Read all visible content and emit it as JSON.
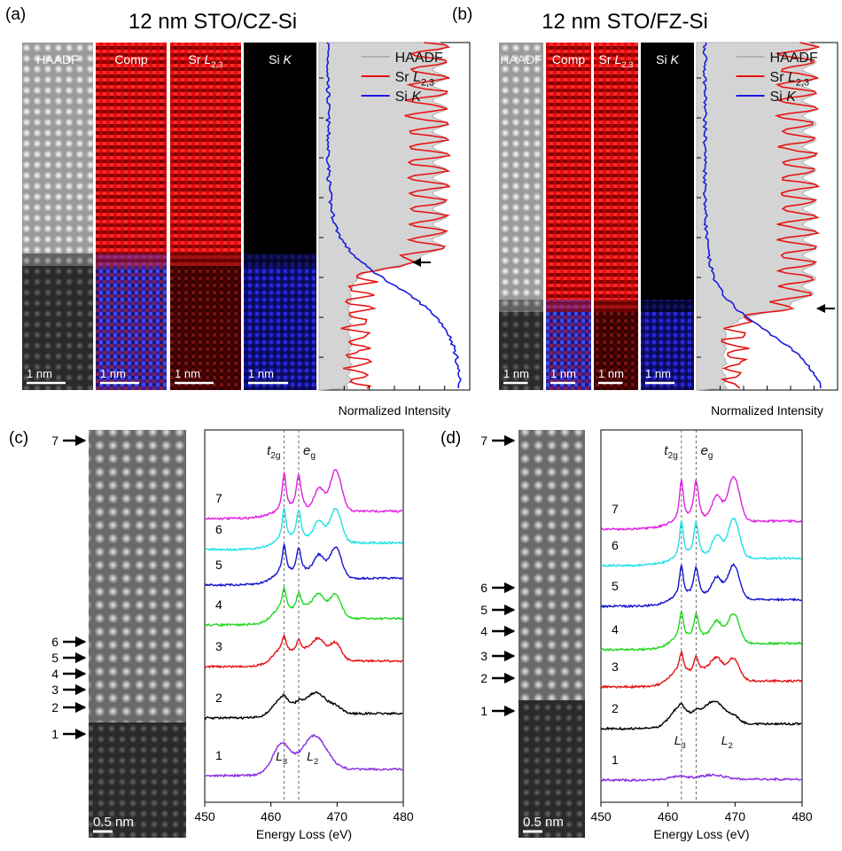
{
  "panels": {
    "a": {
      "label": "(a)",
      "title": "12 nm STO/CZ-Si",
      "strips": [
        {
          "text": "HAADF"
        },
        {
          "text": "Comp"
        },
        {
          "text": "Sr",
          "italic": "L",
          "sub": "2,3"
        },
        {
          "text": "Si",
          "italic": "K"
        }
      ],
      "scale_bars": [
        "1 nm",
        "1 nm",
        "1 nm",
        "1 nm"
      ],
      "legend": [
        {
          "text": "HAADF",
          "color": "#b0b0b0"
        },
        {
          "text": "Sr",
          "italic": "L",
          "sub": "2,3",
          "color": "#e81010"
        },
        {
          "text": "Si",
          "italic": "K",
          "color": "#1a1ae0"
        }
      ],
      "xlabel": "Normalized Intensity"
    },
    "b": {
      "label": "(b)",
      "title": "12 nm STO/FZ-Si",
      "strips": [
        {
          "text": "HAADF"
        },
        {
          "text": "Comp"
        },
        {
          "text": "Sr",
          "italic": "L",
          "sub": "2,3"
        },
        {
          "text": "Si",
          "italic": "K"
        }
      ],
      "scale_bars": [
        "1 nm",
        "1 nm",
        "1 nm",
        "1 nm"
      ],
      "legend": [
        {
          "text": "HAADF",
          "color": "#b0b0b0"
        },
        {
          "text": "Sr",
          "italic": "L",
          "sub": "2,3",
          "color": "#e81010"
        },
        {
          "text": "Si",
          "italic": "K",
          "color": "#1a1ae0"
        }
      ],
      "xlabel": "Normalized Intensity"
    },
    "c": {
      "label": "(c)",
      "arrows": [
        "7",
        "6",
        "5",
        "4",
        "3",
        "2",
        "1"
      ],
      "scale_bar": "0.5 nm",
      "spectra": [
        "7",
        "6",
        "5",
        "4",
        "3",
        "2",
        "1"
      ],
      "colors": [
        "#e020e0",
        "#20e0e8",
        "#1414d0",
        "#20d820",
        "#e81010",
        "#000000",
        "#8a2be2"
      ],
      "markers": [
        {
          "value": 462,
          "italic": "t",
          "sub": "2g"
        },
        {
          "value": 464.2,
          "italic": "e",
          "sub": "g"
        }
      ],
      "edges": [
        {
          "italic": "L",
          "sub": "3"
        },
        {
          "italic": "L",
          "sub": "2"
        }
      ],
      "xlim": [
        450,
        480
      ],
      "xticks": [
        450,
        460,
        470,
        480
      ],
      "xlabel": "Energy Loss (eV)"
    },
    "d": {
      "label": "(d)",
      "arrows": [
        "7",
        "6",
        "5",
        "4",
        "3",
        "2",
        "1"
      ],
      "scale_bar": "0.5 nm",
      "spectra": [
        "7",
        "6",
        "5",
        "4",
        "3",
        "2",
        "1"
      ],
      "colors": [
        "#e020e0",
        "#20e0e8",
        "#1414d0",
        "#20d820",
        "#e81010",
        "#000000",
        "#8a2be2"
      ],
      "markers": [
        {
          "value": 462,
          "italic": "t",
          "sub": "2g"
        },
        {
          "value": 464.2,
          "italic": "e",
          "sub": "g"
        }
      ],
      "edges": [
        {
          "italic": "L",
          "sub": "3"
        },
        {
          "italic": "L",
          "sub": "2"
        }
      ],
      "xlim": [
        450,
        480
      ],
      "xticks": [
        450,
        460,
        470,
        480
      ],
      "xlabel": "Energy Loss (eV)"
    }
  }
}
